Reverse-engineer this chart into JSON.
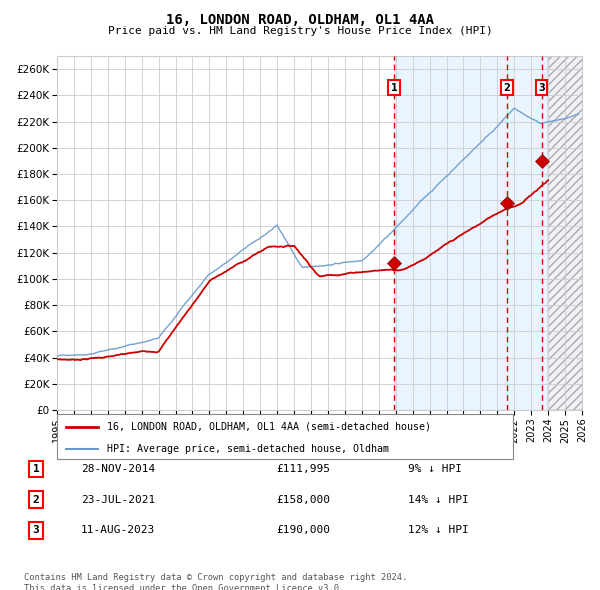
{
  "title": "16, LONDON ROAD, OLDHAM, OL1 4AA",
  "subtitle": "Price paid vs. HM Land Registry's House Price Index (HPI)",
  "xlim": [
    1995,
    2026
  ],
  "ylim": [
    0,
    270000
  ],
  "yticks": [
    0,
    20000,
    40000,
    60000,
    80000,
    100000,
    120000,
    140000,
    160000,
    180000,
    200000,
    220000,
    240000,
    260000
  ],
  "xticks": [
    1995,
    1996,
    1997,
    1998,
    1999,
    2000,
    2001,
    2002,
    2003,
    2004,
    2005,
    2006,
    2007,
    2008,
    2009,
    2010,
    2011,
    2012,
    2013,
    2014,
    2015,
    2016,
    2017,
    2018,
    2019,
    2020,
    2021,
    2022,
    2023,
    2024,
    2025,
    2026
  ],
  "sale_prices": [
    111995,
    158000,
    190000
  ],
  "sale_labels": [
    "1",
    "2",
    "3"
  ],
  "sale_date_floats": [
    2014.91,
    2021.56,
    2023.61
  ],
  "future_start": 2024.0,
  "vline_color": "#dd0000",
  "shade_color": "#ddeeff",
  "hpi_line_color": "#6699cc",
  "price_line_color": "#cc0000",
  "dot_color": "#cc0000",
  "legend_label_price": "16, LONDON ROAD, OLDHAM, OL1 4AA (semi-detached house)",
  "legend_label_hpi": "HPI: Average price, semi-detached house, Oldham",
  "table_rows": [
    {
      "num": "1",
      "date": "28-NOV-2014",
      "price": "£111,995",
      "pct": "9% ↓ HPI"
    },
    {
      "num": "2",
      "date": "23-JUL-2021",
      "price": "£158,000",
      "pct": "14% ↓ HPI"
    },
    {
      "num": "3",
      "date": "11-AUG-2023",
      "price": "£190,000",
      "pct": "12% ↓ HPI"
    }
  ],
  "footer": "Contains HM Land Registry data © Crown copyright and database right 2024.\nThis data is licensed under the Open Government Licence v3.0.",
  "bg_color": "#ffffff",
  "grid_color": "#cccccc"
}
